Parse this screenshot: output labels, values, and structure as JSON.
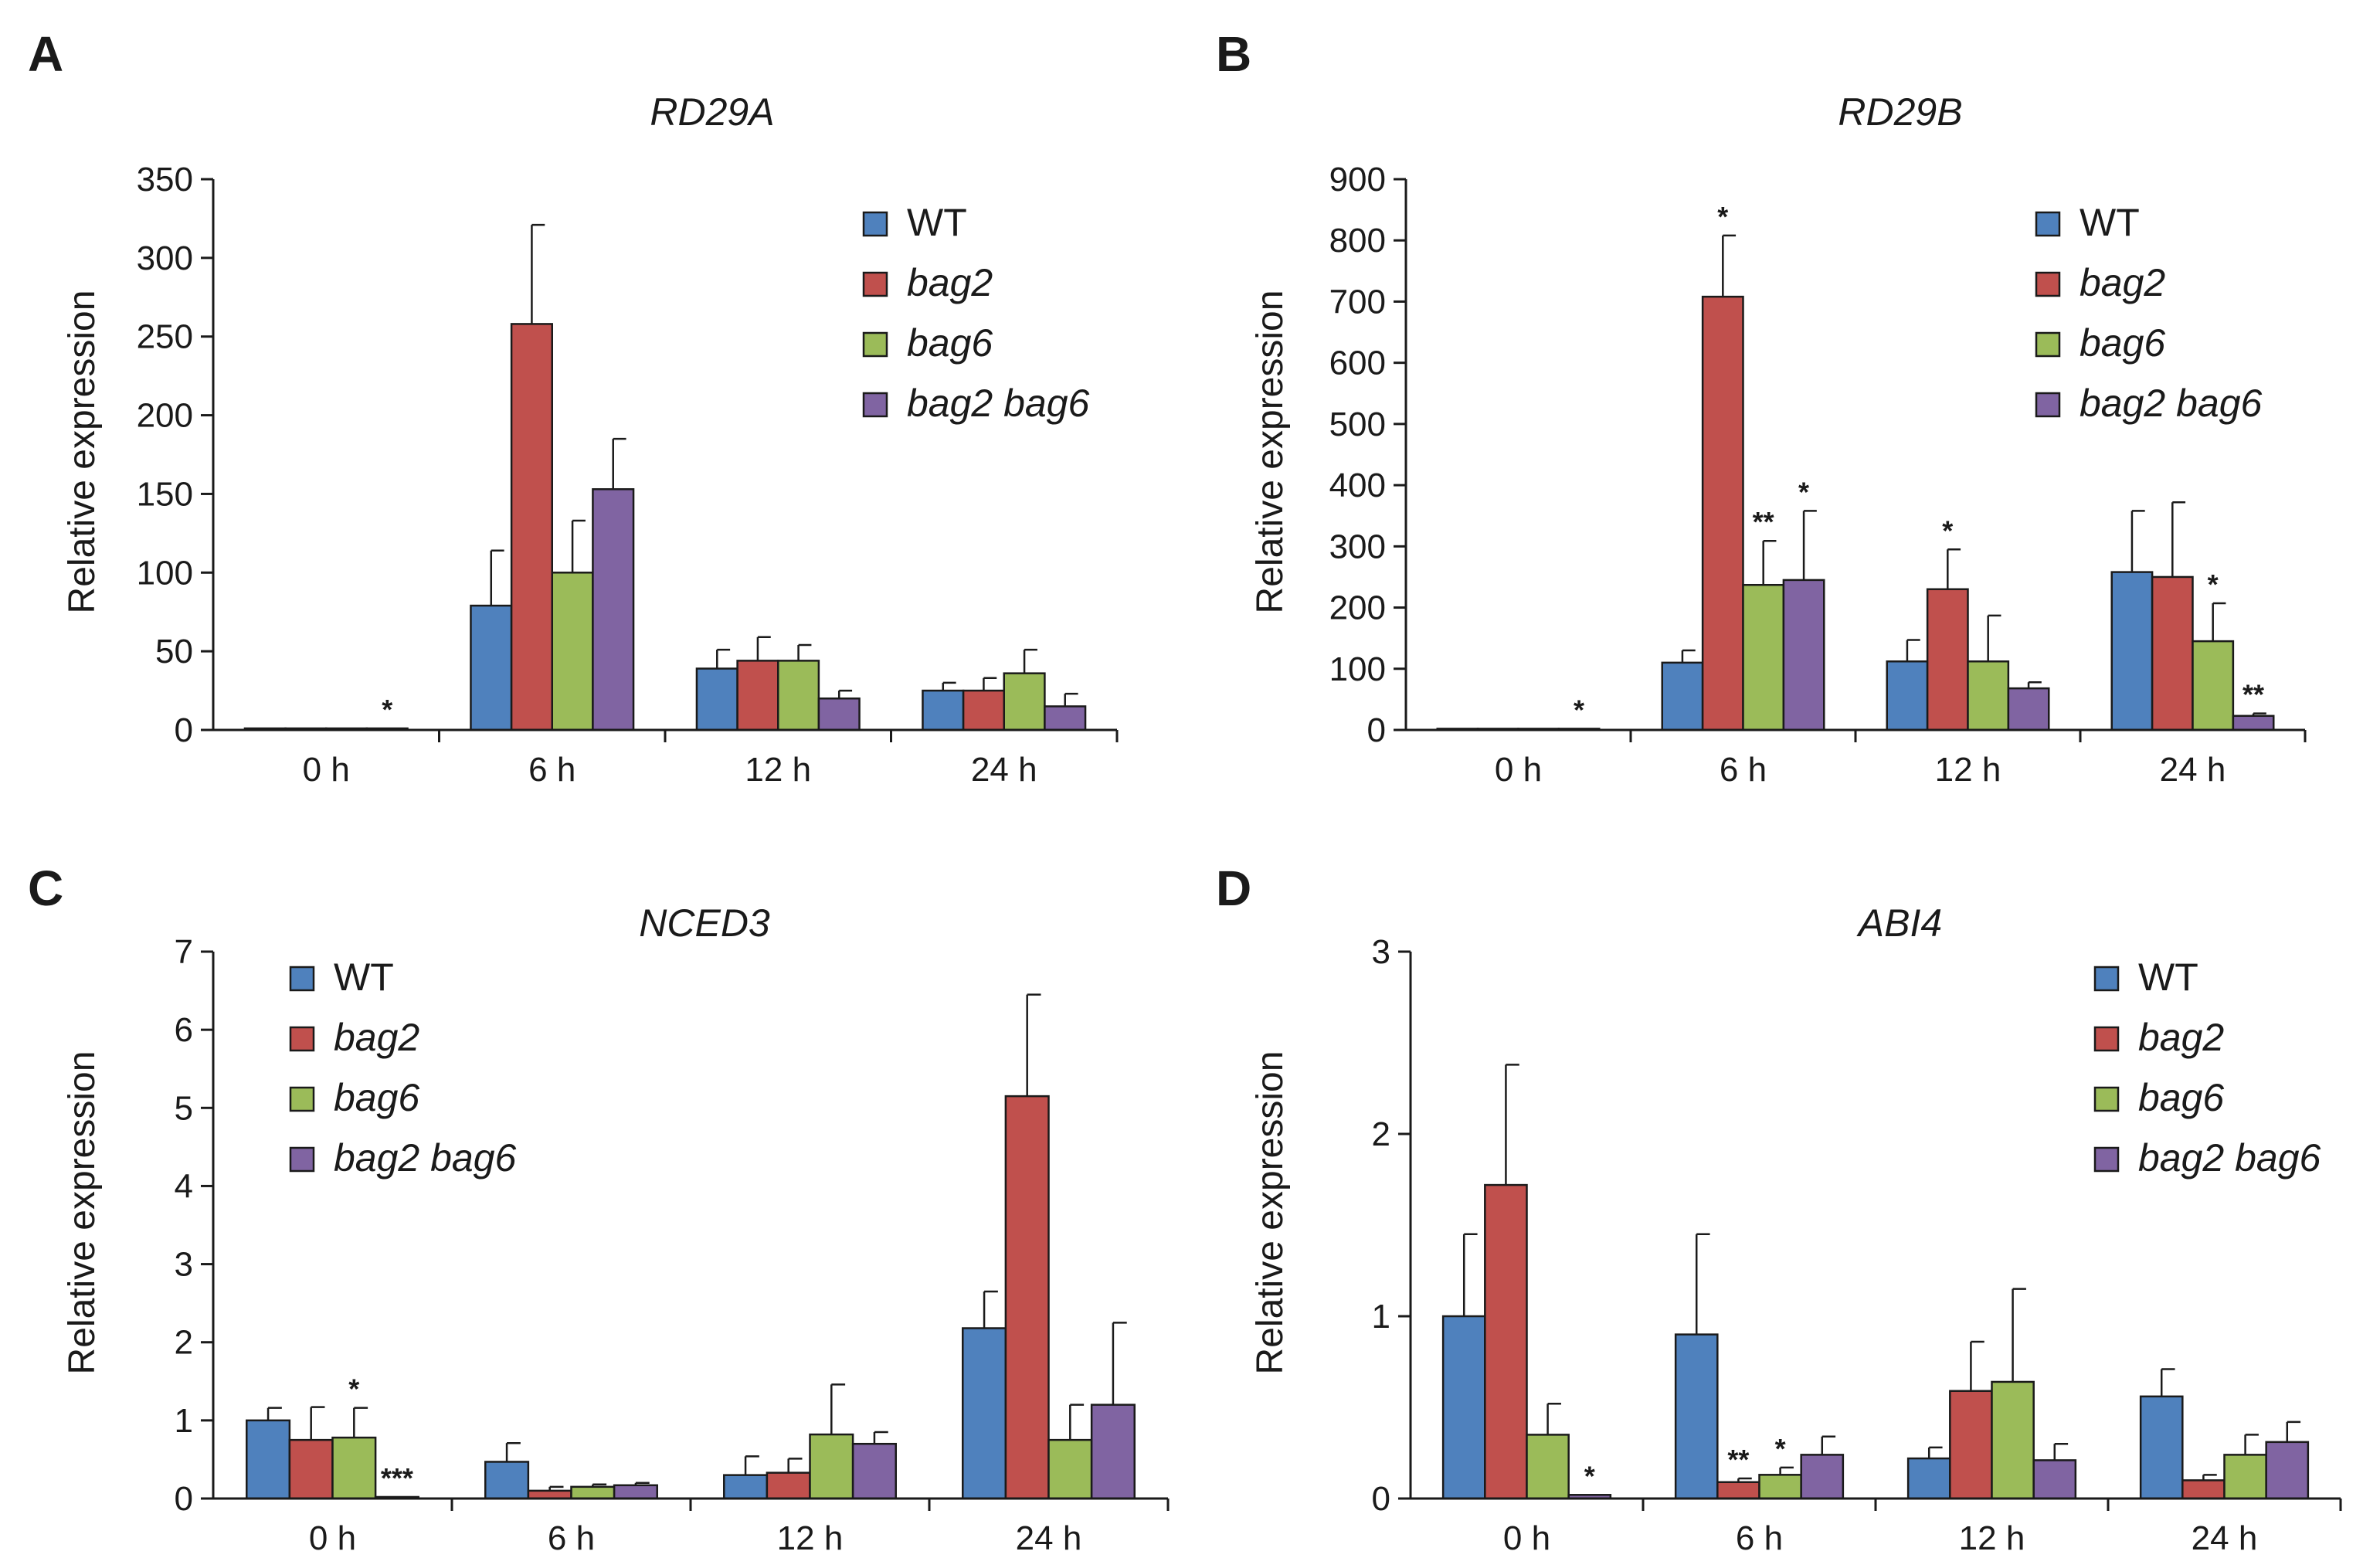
{
  "colors": {
    "WT": "#4f81bd",
    "bag2": "#c0504d",
    "bag6": "#9bbb59",
    "bag2 bag6": "#8064a2",
    "axis": "#1a1a1a"
  },
  "chart_data": [
    {
      "panel": "A",
      "type": "bar",
      "title": "RD29A",
      "ylabel": "Relative expression",
      "xlabel": "",
      "ylim": [
        0,
        350
      ],
      "yticks": [
        "0",
        "50",
        "100",
        "150",
        "200",
        "250",
        "300",
        "350"
      ],
      "categories": [
        "0 h",
        "6 h",
        "12 h",
        "24 h"
      ],
      "legend_position": "top-right",
      "series": [
        {
          "name": "WT",
          "italic": false,
          "values": [
            1,
            79,
            39,
            25
          ],
          "errors": [
            0,
            35,
            12,
            5
          ]
        },
        {
          "name": "bag2",
          "italic": true,
          "values": [
            1,
            258,
            44,
            25
          ],
          "errors": [
            0,
            63,
            15,
            8
          ]
        },
        {
          "name": "bag6",
          "italic": true,
          "values": [
            1,
            100,
            44,
            36
          ],
          "errors": [
            0,
            33,
            10,
            15
          ]
        },
        {
          "name": "bag2 bag6",
          "italic": true,
          "values": [
            1,
            153,
            20,
            15
          ],
          "errors": [
            0,
            32,
            5,
            8
          ]
        }
      ],
      "annotations": [
        {
          "category": 0,
          "series": 3,
          "text": "*"
        }
      ]
    },
    {
      "panel": "B",
      "type": "bar",
      "title": "RD29B",
      "ylabel": "Relative expression",
      "xlabel": "",
      "ylim": [
        0,
        900
      ],
      "yticks": [
        "0",
        "100",
        "200",
        "300",
        "400",
        "500",
        "600",
        "700",
        "800",
        "900"
      ],
      "categories": [
        "0 h",
        "6 h",
        "12 h",
        "24 h"
      ],
      "legend_position": "top-right",
      "series": [
        {
          "name": "WT",
          "italic": false,
          "values": [
            2,
            110,
            112,
            258
          ],
          "errors": [
            0,
            20,
            35,
            100
          ]
        },
        {
          "name": "bag2",
          "italic": true,
          "values": [
            2,
            708,
            230,
            250
          ],
          "errors": [
            0,
            100,
            65,
            122
          ]
        },
        {
          "name": "bag6",
          "italic": true,
          "values": [
            2,
            237,
            112,
            145
          ],
          "errors": [
            0,
            72,
            75,
            62
          ]
        },
        {
          "name": "bag2 bag6",
          "italic": true,
          "values": [
            2,
            245,
            68,
            23
          ],
          "errors": [
            0,
            113,
            10,
            4
          ]
        }
      ],
      "annotations": [
        {
          "category": 0,
          "series": 3,
          "text": "*"
        },
        {
          "category": 1,
          "series": 1,
          "text": "*"
        },
        {
          "category": 1,
          "series": 2,
          "text": "**"
        },
        {
          "category": 1,
          "series": 3,
          "text": "*"
        },
        {
          "category": 2,
          "series": 1,
          "text": "*"
        },
        {
          "category": 3,
          "series": 2,
          "text": "*"
        },
        {
          "category": 3,
          "series": 3,
          "text": "**"
        }
      ]
    },
    {
      "panel": "C",
      "type": "bar",
      "title": "NCED3",
      "ylabel": "Relative expression",
      "xlabel": "",
      "ylim": [
        0,
        7
      ],
      "yticks": [
        "0",
        "1",
        "2",
        "3",
        "4",
        "5",
        "6",
        "7"
      ],
      "categories": [
        "0 h",
        "6 h",
        "12 h",
        "24 h"
      ],
      "legend_position": "top-left",
      "series": [
        {
          "name": "WT",
          "italic": false,
          "values": [
            1.0,
            0.47,
            0.3,
            2.18
          ],
          "errors": [
            0.16,
            0.24,
            0.24,
            0.47
          ]
        },
        {
          "name": "bag2",
          "italic": true,
          "values": [
            0.75,
            0.1,
            0.33,
            5.15
          ],
          "errors": [
            0.42,
            0.05,
            0.18,
            1.3
          ]
        },
        {
          "name": "bag6",
          "italic": true,
          "values": [
            0.78,
            0.15,
            0.82,
            0.75
          ],
          "errors": [
            0.38,
            0.03,
            0.64,
            0.45
          ]
        },
        {
          "name": "bag2 bag6",
          "italic": true,
          "values": [
            0.02,
            0.17,
            0.7,
            1.2
          ],
          "errors": [
            0,
            0.03,
            0.15,
            1.05
          ]
        }
      ],
      "annotations": [
        {
          "category": 0,
          "series": 2,
          "text": "*"
        },
        {
          "category": 0,
          "series": 3,
          "text": "***"
        }
      ]
    },
    {
      "panel": "D",
      "type": "bar",
      "title": "ABI4",
      "ylabel": "Relative expression",
      "xlabel": "",
      "ylim": [
        0,
        3
      ],
      "yticks": [
        "0",
        "1",
        "2",
        "3"
      ],
      "categories": [
        "0 h",
        "6 h",
        "12 h",
        "24 h"
      ],
      "legend_position": "top-right",
      "series": [
        {
          "name": "WT",
          "italic": false,
          "values": [
            1.0,
            0.9,
            0.22,
            0.56
          ],
          "errors": [
            0.45,
            0.55,
            0.06,
            0.15
          ]
        },
        {
          "name": "bag2",
          "italic": true,
          "values": [
            1.72,
            0.09,
            0.59,
            0.1
          ],
          "errors": [
            0.66,
            0.02,
            0.27,
            0.03
          ]
        },
        {
          "name": "bag6",
          "italic": true,
          "values": [
            0.35,
            0.13,
            0.64,
            0.24
          ],
          "errors": [
            0.17,
            0.04,
            0.51,
            0.11
          ]
        },
        {
          "name": "bag2 bag6",
          "italic": true,
          "values": [
            0.02,
            0.24,
            0.21,
            0.31
          ],
          "errors": [
            0,
            0.1,
            0.09,
            0.11
          ]
        }
      ],
      "annotations": [
        {
          "category": 0,
          "series": 3,
          "text": "*"
        },
        {
          "category": 1,
          "series": 1,
          "text": "**"
        },
        {
          "category": 1,
          "series": 2,
          "text": "*"
        }
      ]
    }
  ]
}
